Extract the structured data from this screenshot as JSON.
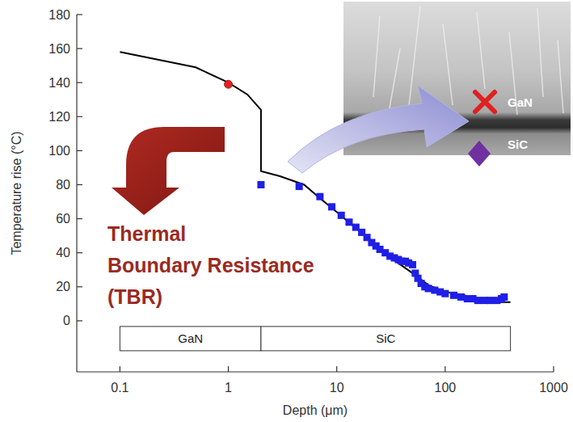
{
  "chart_data": {
    "type": "line",
    "x_label": "Depth (μm)",
    "y_label": "Temperature rise (°C)",
    "log": "x",
    "grid": false,
    "xlim": [
      0.04,
      1000
    ],
    "xticks": [
      0.1,
      1,
      10,
      100,
      1000
    ],
    "ylim": [
      -30,
      180
    ],
    "yticks": [
      0,
      20,
      40,
      60,
      80,
      100,
      120,
      140,
      160,
      180
    ],
    "series": [
      {
        "type": "line",
        "color": "#000000",
        "line_style": "solid",
        "x": [
          0.1,
          0.5,
          1,
          1.5,
          2,
          2,
          3,
          5,
          7,
          10,
          14,
          20,
          30,
          50,
          70,
          100,
          150,
          200,
          300,
          400
        ],
        "values": [
          158,
          149,
          140,
          133,
          124,
          88,
          85,
          80,
          72,
          64,
          56,
          48,
          38,
          28,
          21,
          17,
          15,
          13,
          11,
          11
        ]
      },
      {
        "type": "scatter",
        "color": "#1f1fe6",
        "marker": "square",
        "x": [
          2,
          4.5,
          7,
          9,
          11,
          13,
          15,
          17,
          19,
          21,
          23,
          25,
          28,
          31,
          34,
          37,
          40,
          43,
          46,
          50,
          53,
          56,
          60,
          65,
          70,
          80,
          90,
          100,
          120,
          140,
          160,
          180,
          200,
          230,
          260,
          300,
          330,
          350
        ],
        "values": [
          80,
          79,
          73,
          67,
          62,
          58,
          55,
          52,
          49,
          46,
          44,
          42,
          40,
          38,
          37,
          36,
          35,
          35,
          34,
          33,
          28,
          25,
          22,
          20,
          19,
          18,
          17,
          16,
          15,
          14,
          13,
          13,
          12,
          12,
          12,
          12,
          13,
          14
        ]
      },
      {
        "type": "scatter",
        "color": "#e32222",
        "marker": "circle",
        "x": [
          1
        ],
        "values": [
          139
        ]
      }
    ],
    "layers": [
      {
        "label": "GaN",
        "range": [
          0.1,
          2
        ]
      },
      {
        "label": "SiC",
        "range": [
          2,
          400
        ]
      }
    ],
    "annotation": [
      "Thermal",
      "Boundary Resistance",
      "(TBR)"
    ],
    "inset_labels": [
      "GaN",
      "SiC"
    ]
  }
}
